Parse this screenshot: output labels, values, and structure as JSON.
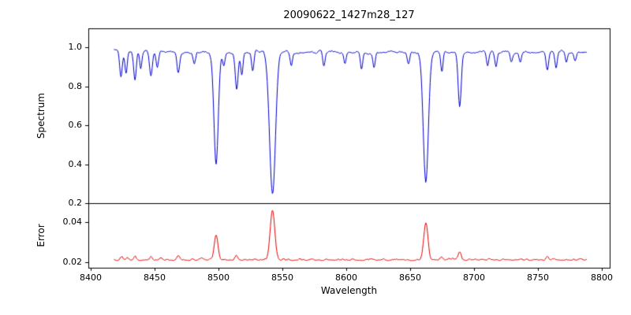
{
  "chart_data": {
    "type": "line",
    "title": "20090622_1427m28_127",
    "xlabel": "Wavelength",
    "grid": false,
    "legend": "none",
    "x": {
      "min": 8398,
      "max": 8806,
      "data_min": 8418,
      "data_max": 8788,
      "step": 0.5,
      "ticks": [
        8400,
        8450,
        8500,
        8550,
        8600,
        8650,
        8700,
        8750,
        8800
      ]
    },
    "panels": [
      {
        "name": "spectrum",
        "ylabel": "Spectrum",
        "color": "#0000cd",
        "ylim": [
          0.2,
          1.097
        ],
        "yticks": [
          0.2,
          0.4,
          0.6,
          0.8,
          1.0
        ],
        "tick_decimals": 1,
        "continuum": 0.975,
        "noise_amplitude": 0.018,
        "noise_smooth": 3,
        "seed": 42,
        "absorption_lines": [
          {
            "center": 8423.5,
            "min_flux": 0.85,
            "sigma": 1.0
          },
          {
            "center": 8427.5,
            "min_flux": 0.86,
            "sigma": 0.9
          },
          {
            "center": 8434.5,
            "min_flux": 0.84,
            "sigma": 1.0
          },
          {
            "center": 8439.0,
            "min_flux": 0.88,
            "sigma": 0.9
          },
          {
            "center": 8447.0,
            "min_flux": 0.85,
            "sigma": 1.1
          },
          {
            "center": 8452.0,
            "min_flux": 0.9,
            "sigma": 0.9
          },
          {
            "center": 8468.4,
            "min_flux": 0.87,
            "sigma": 1.0
          },
          {
            "center": 8481.0,
            "min_flux": 0.91,
            "sigma": 0.9
          },
          {
            "center": 8498.0,
            "min_flux": 0.4,
            "sigma": 1.7
          },
          {
            "center": 8504.0,
            "min_flux": 0.91,
            "sigma": 0.9
          },
          {
            "center": 8514.1,
            "min_flux": 0.79,
            "sigma": 1.1
          },
          {
            "center": 8518.1,
            "min_flux": 0.86,
            "sigma": 0.9
          },
          {
            "center": 8526.7,
            "min_flux": 0.88,
            "sigma": 0.9
          },
          {
            "center": 8542.1,
            "min_flux": 0.245,
            "sigma": 2.3
          },
          {
            "center": 8556.8,
            "min_flux": 0.91,
            "sigma": 0.9
          },
          {
            "center": 8582.3,
            "min_flux": 0.9,
            "sigma": 0.9
          },
          {
            "center": 8598.8,
            "min_flux": 0.91,
            "sigma": 0.9
          },
          {
            "center": 8611.8,
            "min_flux": 0.89,
            "sigma": 0.9
          },
          {
            "center": 8621.6,
            "min_flux": 0.9,
            "sigma": 0.9
          },
          {
            "center": 8648.5,
            "min_flux": 0.92,
            "sigma": 0.9
          },
          {
            "center": 8662.1,
            "min_flux": 0.305,
            "sigma": 2.0
          },
          {
            "center": 8674.7,
            "min_flux": 0.87,
            "sigma": 0.9
          },
          {
            "center": 8688.6,
            "min_flux": 0.69,
            "sigma": 1.2
          },
          {
            "center": 8710.4,
            "min_flux": 0.91,
            "sigma": 0.9
          },
          {
            "center": 8717.0,
            "min_flux": 0.9,
            "sigma": 0.9
          },
          {
            "center": 8729.0,
            "min_flux": 0.93,
            "sigma": 0.9
          },
          {
            "center": 8736.0,
            "min_flux": 0.92,
            "sigma": 0.9
          },
          {
            "center": 8757.2,
            "min_flux": 0.88,
            "sigma": 1.0
          },
          {
            "center": 8764.0,
            "min_flux": 0.9,
            "sigma": 0.9
          },
          {
            "center": 8772.0,
            "min_flux": 0.92,
            "sigma": 0.9
          },
          {
            "center": 8779.0,
            "min_flux": 0.93,
            "sigma": 0.9
          }
        ]
      },
      {
        "name": "error",
        "ylabel": "Error",
        "color": "#e60000",
        "ylim": [
          0.0173,
          0.0494
        ],
        "yticks": [
          0.02,
          0.04
        ],
        "tick_decimals": 2,
        "baseline": 0.0212,
        "noise_amplitude": 0.0011,
        "noise_smooth": 2,
        "seed": 7,
        "peaks": [
          {
            "center": 8424.0,
            "height": 0.0015,
            "sigma": 1.0
          },
          {
            "center": 8434.5,
            "height": 0.0018,
            "sigma": 1.0
          },
          {
            "center": 8447.0,
            "height": 0.0018,
            "sigma": 1.0
          },
          {
            "center": 8468.4,
            "height": 0.0015,
            "sigma": 1.0
          },
          {
            "center": 8498.0,
            "height": 0.0115,
            "sigma": 1.5
          },
          {
            "center": 8514.1,
            "height": 0.002,
            "sigma": 1.0
          },
          {
            "center": 8542.1,
            "height": 0.0248,
            "sigma": 1.8
          },
          {
            "center": 8662.1,
            "height": 0.0185,
            "sigma": 1.6
          },
          {
            "center": 8674.7,
            "height": 0.0015,
            "sigma": 1.0
          },
          {
            "center": 8688.6,
            "height": 0.004,
            "sigma": 1.1
          },
          {
            "center": 8757.2,
            "height": 0.0018,
            "sigma": 1.0
          }
        ]
      }
    ]
  }
}
